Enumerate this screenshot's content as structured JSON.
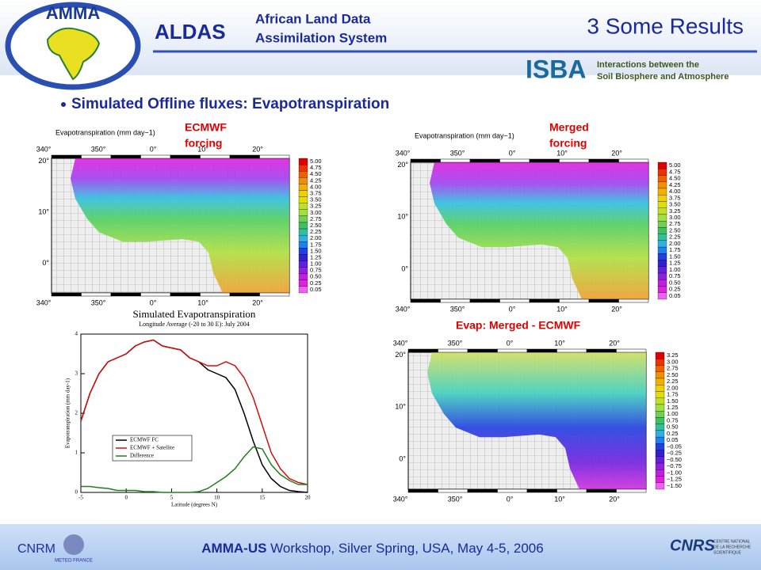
{
  "header": {
    "logo": "AMMA",
    "acronym": "ALDAS",
    "name_line1": "African Land Data",
    "name_line2": "Assimilation System",
    "slide_title": "3 Some Results"
  },
  "isba": {
    "acronym": "ISBA",
    "line1": "Interactions between the",
    "line2": "Soil Biosphere and Atmosphere"
  },
  "bullet": "Simulated Offline fluxes: Evapotranspiration",
  "maps": [
    {
      "title": "Evapotranspiration (mm day−1)",
      "label": [
        "ECMWF",
        "forcing"
      ],
      "lon_labels": [
        "340°",
        "350°",
        "0°",
        "10°",
        "20°"
      ],
      "lat_labels": [
        "20°",
        "10°",
        "0°"
      ],
      "colorbar_labels": [
        "5.00",
        "4.75",
        "4.50",
        "4.25",
        "4.00",
        "3.75",
        "3.50",
        "3.25",
        "3.00",
        "2.75",
        "2.50",
        "2.25",
        "2.00",
        "1.75",
        "1.50",
        "1.25",
        "1.00",
        "0.75",
        "0.50",
        "0.25",
        "0.05"
      ]
    },
    {
      "title": "Evapotranspiration (mm day−1)",
      "label": [
        "Merged",
        "forcing"
      ],
      "lon_labels": [
        "340°",
        "350°",
        "0°",
        "10°",
        "20°"
      ],
      "lat_labels": [
        "20°",
        "10°",
        "0°"
      ],
      "colorbar_labels": [
        "5.00",
        "4.75",
        "4.50",
        "4.25",
        "4.00",
        "3.75",
        "3.50",
        "3.25",
        "3.00",
        "2.75",
        "2.50",
        "2.25",
        "2.00",
        "1.75",
        "1.50",
        "1.25",
        "1.00",
        "0.75",
        "0.50",
        "0.25",
        "0.05"
      ]
    },
    {
      "label": [
        "Evap: Merged - ECMWF"
      ],
      "lon_labels": [
        "340°",
        "350°",
        "0°",
        "10°",
        "20°"
      ],
      "lat_labels": [
        "20°",
        "10°",
        "0°"
      ],
      "colorbar_labels": [
        "3.25",
        "3.00",
        "2.75",
        "2.50",
        "2.25",
        "2.00",
        "1.75",
        "1.50",
        "1.25",
        "1.00",
        "0.75",
        "0.50",
        "0.25",
        "0.05",
        "−0.05",
        "−0.25",
        "−0.50",
        "−0.75",
        "−1.00",
        "−1.25",
        "−1.50"
      ]
    }
  ],
  "chart_data": {
    "type": "line",
    "title": "Simulated Evapotranspiration",
    "subtitle": "Longitude Average (-20 to 30 E): July 2004",
    "x_label": "Latitude (degrees N)",
    "y_label": "Evapotranspiration (mm day-1)",
    "x": [
      -5,
      -4,
      -3,
      -2,
      -1,
      0,
      1,
      2,
      3,
      4,
      5,
      6,
      7,
      8,
      9,
      10,
      11,
      12,
      13,
      14,
      15,
      16,
      17,
      18,
      19,
      20
    ],
    "xlim": [
      -5,
      20
    ],
    "xticks": [
      -5,
      0,
      5,
      10,
      15,
      20
    ],
    "ylim": [
      0,
      4
    ],
    "yticks": [
      0,
      1,
      2,
      3,
      4
    ],
    "legend": "lower left",
    "series": [
      {
        "name": "ECMWF FC",
        "color": "#000000",
        "values": [
          1.8,
          2.5,
          3.0,
          3.3,
          3.4,
          3.5,
          3.7,
          3.8,
          3.85,
          3.7,
          3.65,
          3.6,
          3.4,
          3.3,
          3.1,
          3.0,
          2.9,
          2.6,
          2.0,
          1.3,
          0.7,
          0.35,
          0.15,
          0.05,
          0.02,
          0.0
        ]
      },
      {
        "name": "ECMWF + Satellite",
        "color": "#d01010",
        "values": [
          1.8,
          2.5,
          3.0,
          3.3,
          3.4,
          3.5,
          3.7,
          3.8,
          3.85,
          3.7,
          3.65,
          3.6,
          3.4,
          3.3,
          3.2,
          3.2,
          3.3,
          3.2,
          2.9,
          2.4,
          1.7,
          1.0,
          0.6,
          0.35,
          0.25,
          0.2
        ]
      },
      {
        "name": "Difference",
        "color": "#208020",
        "values": [
          0.15,
          0.15,
          0.12,
          0.1,
          0.05,
          0.05,
          0.05,
          0.02,
          0.02,
          0.0,
          0.0,
          0.0,
          0.0,
          0.02,
          0.1,
          0.25,
          0.4,
          0.6,
          0.9,
          1.15,
          1.1,
          0.7,
          0.45,
          0.3,
          0.2,
          0.2
        ]
      }
    ]
  },
  "footer": {
    "lab": "CNRM",
    "lab_sub": "METEO FRANCE",
    "event_bold": "AMMA-US",
    "event_rest": " Workshop, Silver Spring, USA, May 4-5, 2006",
    "cnrs": "CNRS",
    "cnrs_line1": "CENTRE NATIONAL",
    "cnrs_line2": "DE LA RECHERCHE",
    "cnrs_line3": "SCIENTIFIQUE"
  }
}
